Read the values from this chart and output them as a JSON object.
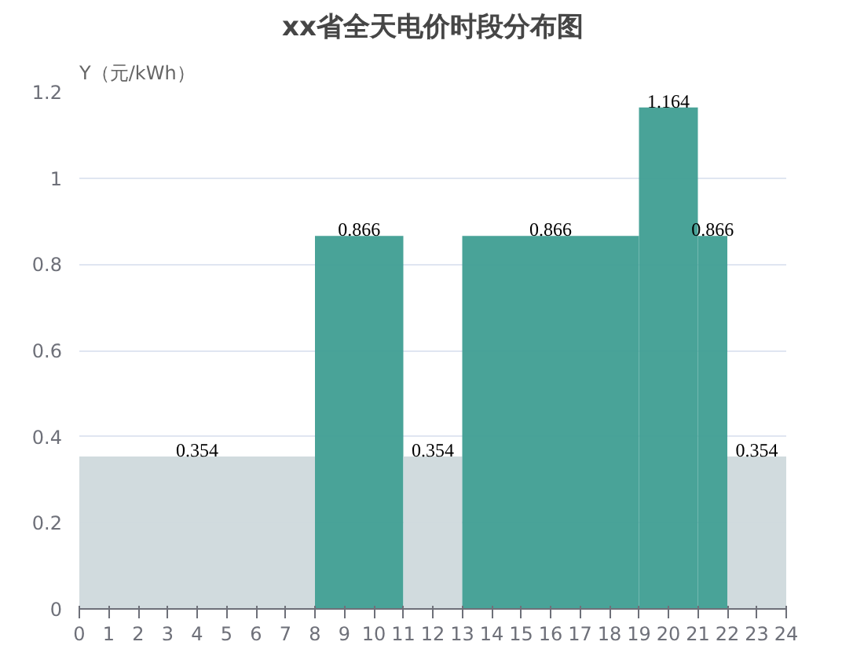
{
  "chart_data": {
    "type": "histogram",
    "title": "xx省全天电价时段分布图",
    "ylabel": "Y（元/kWh）",
    "bins": [
      0,
      8,
      11,
      13,
      19,
      21,
      22,
      24
    ],
    "values": [
      0.354,
      0.866,
      0.354,
      0.866,
      1.164,
      0.866,
      0.354
    ],
    "colors": [
      "#cfd9dc",
      "#3f9e92",
      "#cfd9dc",
      "#3f9e92",
      "#3f9e92",
      "#3f9e92",
      "#cfd9dc"
    ],
    "data_labels": true,
    "grid": "y",
    "xlim": [
      0,
      24
    ],
    "ylim": [
      0,
      1.2
    ],
    "xticks": [
      0,
      1,
      2,
      3,
      4,
      5,
      6,
      7,
      8,
      9,
      10,
      11,
      12,
      13,
      14,
      15,
      16,
      17,
      18,
      19,
      20,
      21,
      22,
      23,
      24
    ],
    "yticks": [
      0,
      0.2,
      0.4,
      0.6,
      0.8,
      1,
      1.2
    ]
  }
}
